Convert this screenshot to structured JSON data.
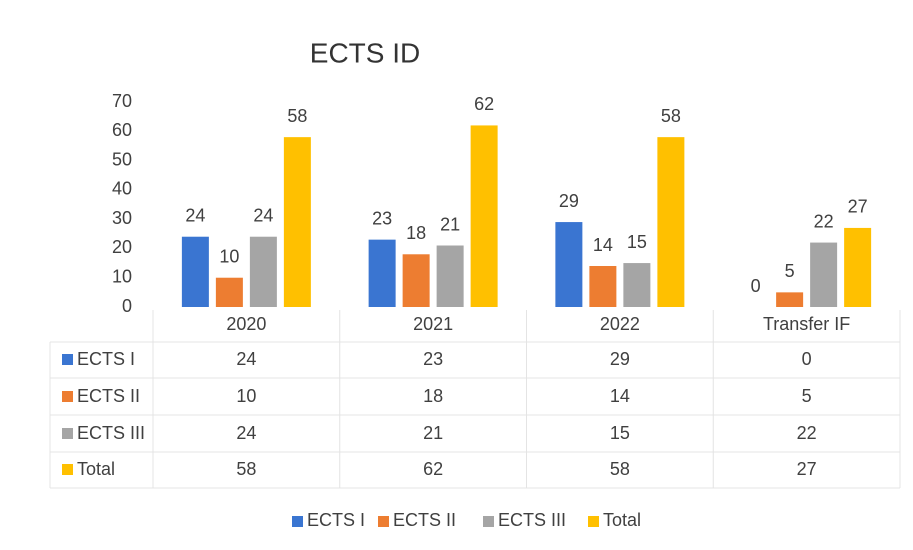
{
  "chart_data": {
    "type": "bar",
    "title": "ECTS ID",
    "categories": [
      "2020",
      "2021",
      "2022",
      "Transfer IF"
    ],
    "series": [
      {
        "name": "ECTS I",
        "color": "#3a75d1",
        "values": [
          24,
          23,
          29,
          0
        ]
      },
      {
        "name": "ECTS II",
        "color": "#ed7d31",
        "values": [
          10,
          18,
          14,
          5
        ]
      },
      {
        "name": "ECTS III",
        "color": "#a5a5a5",
        "values": [
          24,
          21,
          15,
          22
        ]
      },
      {
        "name": "Total",
        "color": "#ffc000",
        "values": [
          58,
          62,
          58,
          27
        ]
      }
    ],
    "ylim": [
      0,
      70
    ],
    "yticks": [
      0,
      10,
      20,
      30,
      40,
      50,
      60,
      70
    ],
    "grid": false,
    "legend": "bottom",
    "data_table": true
  }
}
